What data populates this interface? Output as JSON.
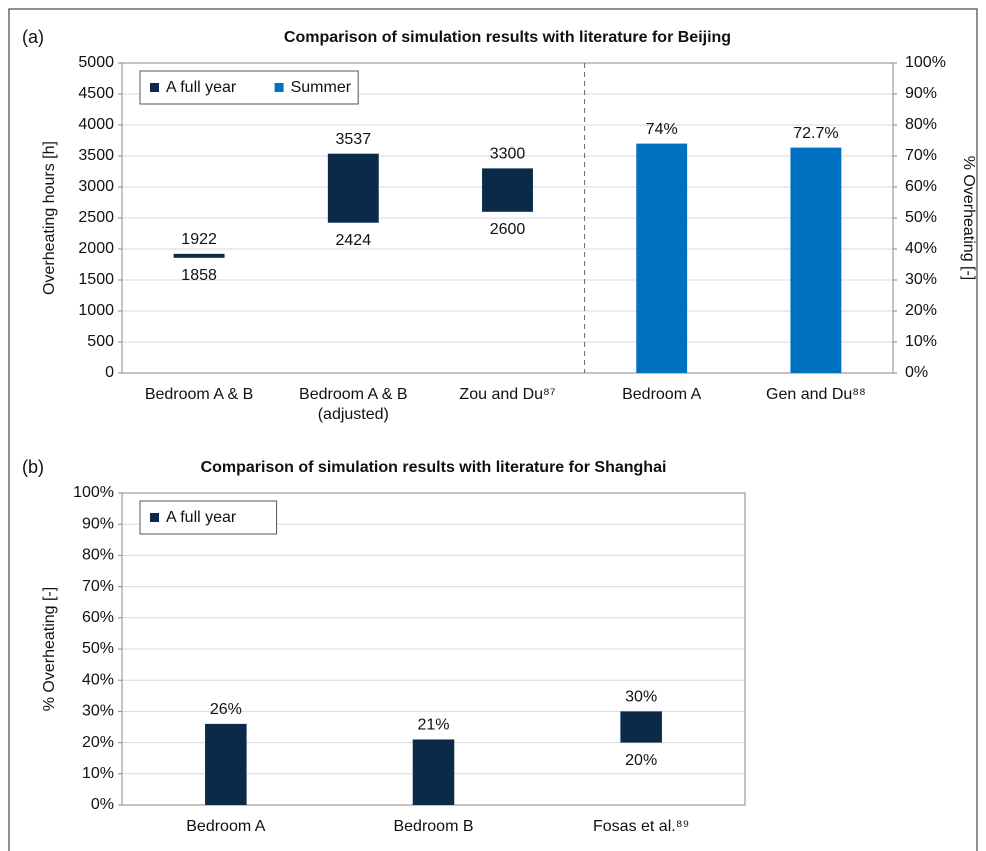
{
  "chart_data": [
    {
      "type": "range-bar",
      "panel_label": "(a)",
      "title": "Comparison of simulation results with literature for Beijing",
      "ylabel": "Overheating hours [h]",
      "y2label": "% Overheating [-]",
      "categories": [
        "Bedroom A & B",
        "Bedroom A & B\n(adjusted)",
        "Zou and Du⁸⁷",
        "Bedroom A",
        "Gen and Du⁸⁸"
      ],
      "series": [
        {
          "name": "A full year",
          "color": "#0b2a4a",
          "values": [
            1922,
            3537,
            3300,
            null,
            null
          ],
          "low": [
            1858,
            2424,
            2600,
            null,
            null
          ]
        },
        {
          "name": "Summer",
          "color": "#0070c0",
          "axis": "y2",
          "values": [
            null,
            null,
            null,
            74,
            72.7
          ],
          "value_labels": [
            null,
            null,
            null,
            "74%",
            "72.7%"
          ]
        }
      ],
      "ylim": [
        0,
        5000
      ],
      "yticks": [
        0,
        500,
        1000,
        1500,
        2000,
        2500,
        3000,
        3500,
        4000,
        4500,
        5000
      ],
      "y2lim": [
        0,
        100
      ],
      "y2ticks": [
        {
          "value": 0,
          "label": "0%"
        },
        {
          "value": 10,
          "label": "10%"
        },
        {
          "value": 20,
          "label": "20%"
        },
        {
          "value": 30,
          "label": "30%"
        },
        {
          "value": 40,
          "label": "40%"
        },
        {
          "value": 50,
          "label": "50%"
        },
        {
          "value": 60,
          "label": "60%"
        },
        {
          "value": 70,
          "label": "70%"
        },
        {
          "value": 80,
          "label": "80%"
        },
        {
          "value": 90,
          "label": "90%"
        },
        {
          "value": 100,
          "label": "100%"
        }
      ],
      "grid": true,
      "legend": "upper left"
    },
    {
      "type": "range-bar",
      "panel_label": "(b)",
      "title": "Comparison of simulation results with literature for Shanghai",
      "ylabel": "% Overheating [-]",
      "categories": [
        "Bedroom A",
        "Bedroom B",
        "Fosas et al.⁸⁹"
      ],
      "series": [
        {
          "name": "A full year",
          "color": "#0b2a4a",
          "values": [
            26,
            21,
            30
          ],
          "value_labels": [
            "26%",
            "21%",
            "30%"
          ],
          "low": [
            null,
            null,
            20
          ],
          "low_labels": [
            null,
            null,
            "20%"
          ]
        }
      ],
      "ylim": [
        0,
        100
      ],
      "yticks": [
        {
          "value": 0,
          "label": "0%"
        },
        {
          "value": 10,
          "label": "10%"
        },
        {
          "value": 20,
          "label": "20%"
        },
        {
          "value": 30,
          "label": "30%"
        },
        {
          "value": 40,
          "label": "40%"
        },
        {
          "value": 50,
          "label": "50%"
        },
        {
          "value": 60,
          "label": "60%"
        },
        {
          "value": 70,
          "label": "70%"
        },
        {
          "value": 80,
          "label": "80%"
        },
        {
          "value": 90,
          "label": "90%"
        },
        {
          "value": 100,
          "label": "100%"
        }
      ],
      "grid": true,
      "legend": "upper left"
    }
  ]
}
